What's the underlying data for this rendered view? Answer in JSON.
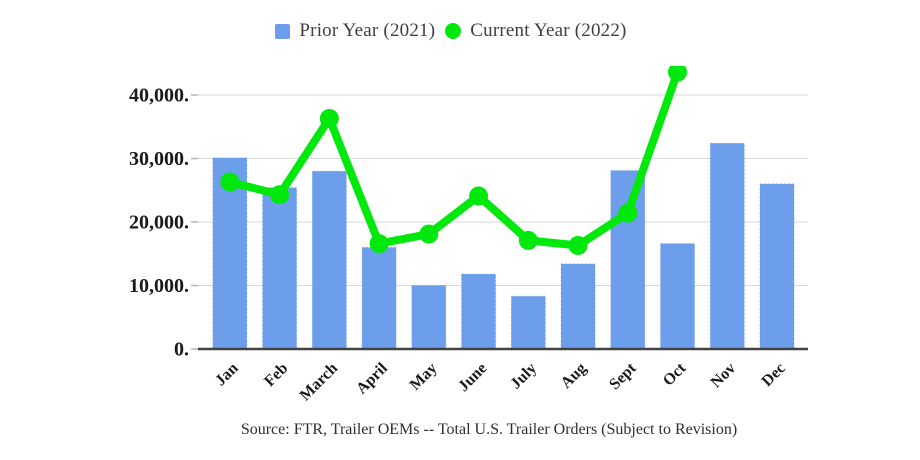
{
  "legend": {
    "prior_label": "Prior Year (2021)",
    "current_label": "Current Year (2022)"
  },
  "source_text": "Source: FTR, Trailer OEMs -- Total U.S. Trailer Orders (Subject to Revision)",
  "colors": {
    "bar_fill": "#6d9eeb",
    "bar_edge": "#5a8ddb",
    "line_green": "#00e80c",
    "gridline": "#d9d9d9",
    "axis_line": "#424242",
    "tick": "#b7b7b7",
    "axis_text": "#1a1a1a"
  },
  "chart_data": {
    "type": "bar",
    "subtype": "bar-line-combo",
    "title": "",
    "xlabel": "",
    "ylabel": "",
    "categories": [
      "Jan",
      "Feb",
      "March",
      "April",
      "May",
      "June",
      "July",
      "Aug",
      "Sept",
      "Oct",
      "Nov",
      "Dec"
    ],
    "series": [
      {
        "name": "Prior Year (2021)",
        "type": "bar",
        "color": "#6d9eeb",
        "values": [
          30100,
          25400,
          28000,
          16000,
          10000,
          11800,
          8300,
          13400,
          28100,
          16600,
          32400,
          26000
        ]
      },
      {
        "name": "Current Year (2022)",
        "type": "line",
        "color": "#00e80c",
        "values": [
          26300,
          24300,
          36300,
          16600,
          18100,
          24100,
          17100,
          16300,
          21400,
          43600,
          null,
          null
        ]
      }
    ],
    "ylim": [
      0,
      40000
    ],
    "grid": "horizontal-only",
    "legend_position": "top",
    "y_ticks": [
      {
        "value": 0,
        "label": "0."
      },
      {
        "value": 10000,
        "label": "10,000."
      },
      {
        "value": 20000,
        "label": "20,000."
      },
      {
        "value": 30000,
        "label": "30,000."
      },
      {
        "value": 40000,
        "label": "40,000."
      }
    ]
  }
}
